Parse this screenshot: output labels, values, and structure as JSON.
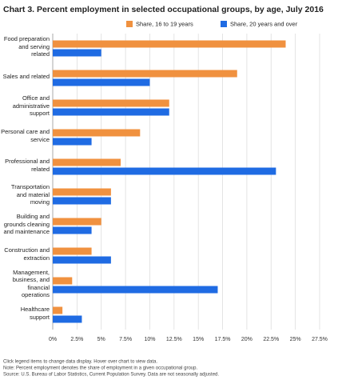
{
  "chart_data": {
    "type": "barh",
    "title": "Chart 3. Percent employment in selected occupational groups, by age, July 2016",
    "categories": [
      "Food preparation and serving related",
      "Sales and related",
      "Office and administrative support",
      "Personal care and service",
      "Professional and related",
      "Transportation and material moving",
      "Building and grounds cleaning and maintenance",
      "Construction and extraction",
      "Management, business, and financial operations",
      "Healthcare support"
    ],
    "series": [
      {
        "name": "Share, 16 to 19 years",
        "color": "#f0913f",
        "values": [
          24,
          19,
          12,
          9,
          7,
          6,
          5,
          4,
          2,
          1
        ]
      },
      {
        "name": "Share, 20 years and over",
        "color": "#1f6be3",
        "values": [
          5,
          10,
          12,
          4,
          23,
          6,
          4,
          6,
          17,
          3
        ]
      }
    ],
    "xlim": [
      0,
      27.5
    ],
    "xticks": [
      {
        "value": 0,
        "label": "0%"
      },
      {
        "value": 2.5,
        "label": "2.5%"
      },
      {
        "value": 5,
        "label": "5%"
      },
      {
        "value": 7.5,
        "label": "7.5%"
      },
      {
        "value": 10,
        "label": "10%"
      },
      {
        "value": 12.5,
        "label": "12.5%"
      },
      {
        "value": 15,
        "label": "15%"
      },
      {
        "value": 17.5,
        "label": "17.5%"
      },
      {
        "value": 20,
        "label": "20%"
      },
      {
        "value": 22.5,
        "label": "22.5%"
      },
      {
        "value": 25,
        "label": "25%"
      },
      {
        "value": 27.5,
        "label": "27.5%"
      }
    ],
    "grid": true,
    "notes": [
      "Click legend items to change data display. Hover over chart to view data.",
      "Note: Percent employment denotes the share of employment in a given occupational group.",
      "Source: U.S. Bureau of Labor Statistics, Current Population Survey. Data are not seasonally adjusted."
    ]
  }
}
